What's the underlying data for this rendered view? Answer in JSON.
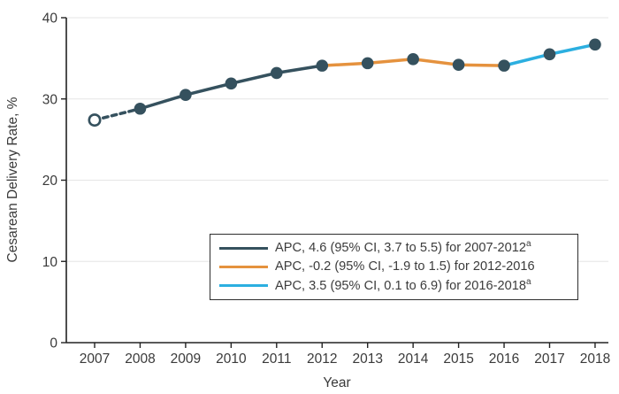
{
  "figure": {
    "ylabel": "Cesarean Delivery Rate, %",
    "xlabel": "Year"
  },
  "legend": {
    "items": [
      {
        "label": "APC, 4.6 (95% CI, 3.7 to 5.5) for 2007-2012",
        "superscript": "a",
        "color": "#35515E"
      },
      {
        "label": "APC, -0.2 (95% CI, -1.9 to 1.5) for 2012-2016",
        "superscript": "",
        "color": "#E5923E"
      },
      {
        "label": "APC, 3.5 (95% CI, 0.1 to 6.9) for 2016-2018",
        "superscript": "a",
        "color": "#2CAFE0"
      }
    ]
  },
  "chart_data": {
    "type": "line",
    "title": "",
    "xlabel": "Year",
    "ylabel": "Cesarean Delivery Rate, %",
    "x": [
      2007,
      2008,
      2009,
      2010,
      2011,
      2012,
      2013,
      2014,
      2015,
      2016,
      2017,
      2018
    ],
    "series": [
      {
        "name": "Cesarean delivery rate",
        "values": [
          27.4,
          28.8,
          30.5,
          31.9,
          33.2,
          34.1,
          34.4,
          34.9,
          34.2,
          34.1,
          35.5,
          36.7
        ]
      }
    ],
    "segments": [
      {
        "name": "2007-2012",
        "start": 2007,
        "end": 2012,
        "color": "#35515E",
        "apc": 4.6,
        "dashed_until": 2008
      },
      {
        "name": "2012-2016",
        "start": 2012,
        "end": 2016,
        "color": "#E5923E",
        "apc": -0.2
      },
      {
        "name": "2016-2018",
        "start": 2016,
        "end": 2018,
        "color": "#2CAFE0",
        "apc": 3.5
      }
    ],
    "open_marker_year": 2007,
    "marker_color": "#35515E",
    "ylim": [
      0,
      40
    ],
    "yticks": [
      0,
      10,
      20,
      30,
      40
    ],
    "grid": "horizontal",
    "gridline_color": "#e5e5e5",
    "axis_color": "#222222",
    "tick_label_color": "#3a3a3a",
    "legend_position": "inside-lower-right"
  }
}
